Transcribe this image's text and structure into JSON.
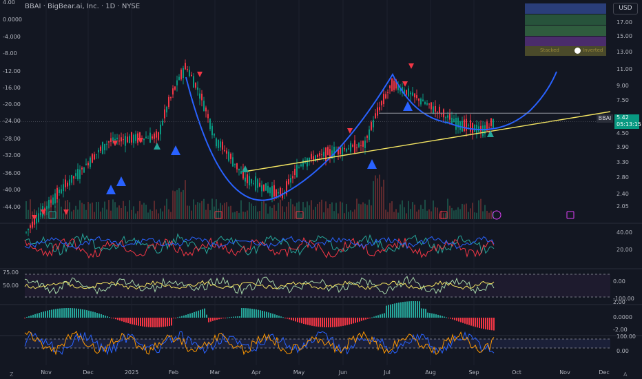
{
  "header": {
    "title": "BBAI · BigBear.ai, Inc. · 1D · NYSE",
    "currency_button": "USD"
  },
  "price": {
    "symbol_label": "BBAI",
    "last": "5.42",
    "countdown": "05:13:15"
  },
  "colors": {
    "background": "#131722",
    "up": "#089981",
    "down": "#f23645",
    "cup_curve": "#2962ff",
    "trendline": "#f5e663",
    "buy_signal": "#26a69a",
    "buy_signal_large": "#2962ff",
    "sell_signal": "#f23645"
  },
  "legend": {
    "toggle_left": "Stacked",
    "toggle_right": "Inverted",
    "bands": [
      "#2a3e7a",
      "#27533b",
      "#2f5c3e",
      "#4a2c6b"
    ]
  },
  "left_axis_labels": [
    "4.00",
    "0.0000",
    "-4.000",
    "-8.00",
    "-12.00",
    "-16.00",
    "-20.00",
    "-24.00",
    "-28.00",
    "-32.00",
    "-36.00",
    "-40.00",
    "-44.00"
  ],
  "sub_left_labels": [
    "75.00",
    "50.00"
  ],
  "right_axis": {
    "main": [
      "17.00",
      "15.00",
      "13.00",
      "11.00",
      "9.00",
      "7.50",
      "6.50",
      "4.50",
      "3.90",
      "3.30",
      "2.80",
      "2.40",
      "2.05"
    ],
    "rsi": [
      "40.00",
      "20.00"
    ],
    "stoch": [
      "0.00",
      "-100.00"
    ],
    "macd": [
      "2.00",
      "0.0000",
      "-2.00"
    ],
    "osc": [
      "100.00",
      "0.00"
    ]
  },
  "x_axis": [
    "Nov",
    "Dec",
    "2025",
    "Feb",
    "Mar",
    "Apr",
    "May",
    "Jun",
    "Jul",
    "Aug",
    "Sep",
    "Oct",
    "Nov",
    "Dec"
  ],
  "bottom_buttons": {
    "left": "Z",
    "right": "A"
  },
  "chart_data": {
    "type": "candlestick",
    "title": "BBAI · BigBear.ai, Inc. · 1D · NYSE",
    "ylim": [
      1.8,
      18
    ],
    "log_scale": true,
    "months": [
      "Nov",
      "Dec",
      "2025",
      "Feb",
      "Mar",
      "Apr",
      "May",
      "Jun",
      "Jul",
      "Aug",
      "Sep"
    ],
    "close_anchors": [
      {
        "month": "Oct 2024",
        "close": 1.6
      },
      {
        "month": "Nov",
        "close": 2.1
      },
      {
        "month": "Dec",
        "close": 3.2
      },
      {
        "month": "Dec mid",
        "close": 4.4
      },
      {
        "month": "2025",
        "close": 4.5
      },
      {
        "month": "Jan late",
        "close": 4.6
      },
      {
        "month": "Feb peak",
        "close": 10.0
      },
      {
        "month": "Mar",
        "close": 4.5
      },
      {
        "month": "Apr",
        "close": 2.9
      },
      {
        "month": "Apr late",
        "close": 2.4
      },
      {
        "month": "May",
        "close": 3.5
      },
      {
        "month": "Jun",
        "close": 4.0
      },
      {
        "month": "Jun late",
        "close": 4.2
      },
      {
        "month": "Jul peak",
        "close": 8.2
      },
      {
        "month": "Aug",
        "close": 6.4
      },
      {
        "month": "Aug late",
        "close": 5.4
      },
      {
        "month": "Sep",
        "close": 4.9
      },
      {
        "month": "Sep latest",
        "close": 5.42
      }
    ],
    "last_price": 5.42,
    "resistance_level": 5.95,
    "buy_signals": [
      "Dec",
      "Dec",
      "Jan",
      "Jan",
      "Feb",
      "Mar",
      "Jun",
      "Jul",
      "Jul",
      "Sep"
    ],
    "sell_signals": [
      "Oct",
      "Nov",
      "Nov",
      "Dec",
      "Jan",
      "Feb",
      "Jun",
      "Jul",
      "Jul"
    ],
    "indicator_panes": [
      "DMI",
      "RSI",
      "MACD",
      "Stochastic RSI"
    ]
  }
}
